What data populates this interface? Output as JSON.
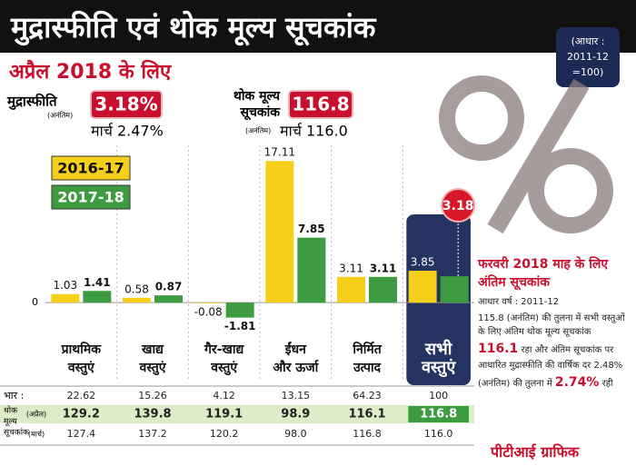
{
  "header": {
    "title": "मुद्रास्फीति एवं थोक मूल्य सूचकांक",
    "base_note": [
      "(आधार :",
      "2011-12",
      "=100)"
    ]
  },
  "subtitle": "अप्रैल 2018 के लिए",
  "inflation": {
    "label": "मुद्रास्फीति",
    "status": "(अनंतिम)",
    "value": "3.18%",
    "previous": "मार्च 2.47%"
  },
  "wpi": {
    "label": [
      "थोक मूल्य",
      "सूचकांक"
    ],
    "status": "(अनंतिम)",
    "value": "116.8",
    "previous": "मार्च 116.0"
  },
  "chart_data": {
    "type": "bar",
    "categories": [
      [
        "प्राथमिक",
        "वस्तुएं"
      ],
      [
        "खाद्य",
        "वस्तुएं"
      ],
      [
        "गैर-खाद्य",
        "वस्तुएं"
      ],
      [
        "ईंधन",
        "और ऊर्जा"
      ],
      [
        "निर्मित",
        "उत्पाद"
      ],
      [
        "सभी",
        "वस्तुएं"
      ]
    ],
    "series": [
      {
        "name": "2016-17",
        "color": "#f6cf1a",
        "values": [
          1.03,
          0.58,
          -0.08,
          17.11,
          3.11,
          3.85
        ]
      },
      {
        "name": "2017-18",
        "color": "#3d9b41",
        "values": [
          1.41,
          0.87,
          -1.81,
          7.85,
          3.11,
          3.18
        ]
      }
    ],
    "ylim": [
      -3.5,
      19
    ],
    "yticks": [
      0
    ],
    "grid": true
  },
  "table": {
    "row_group_label": [
      "थोक",
      "मूल्य",
      "सूचकांक"
    ],
    "rows": [
      {
        "label": "भार :",
        "cells": [
          "22.62",
          "15.26",
          "4.12",
          "13.15",
          "64.23",
          "100"
        ]
      },
      {
        "label": "(अप्रैल)",
        "cells": [
          "129.2",
          "139.8",
          "119.1",
          "98.9",
          "116.1",
          "116.8"
        ]
      },
      {
        "label": "(मार्च)",
        "cells": [
          "127.4",
          "137.2",
          "120.2",
          "98.0",
          "116.8",
          "116.0"
        ]
      }
    ]
  },
  "side_note": {
    "heading": "फरवरी 2018 माह के लिए अंतिम सूचकांक",
    "base": "आधार वर्ष : 2011-12",
    "body": [
      "115.8 (अनंतिम) की तुलना में सभी वस्तुओं के लिए अंतिम थोक मूल्य सूचकांक ",
      "116.1",
      " रहा और अंतिम सूचकांक पर आधारित मुद्रास्फीति की वार्षिक दर 2.48% (अनंतिम) की तुलना में ",
      "2.74%",
      " रही"
    ]
  },
  "credit": "पीटीआई ग्राफिक"
}
